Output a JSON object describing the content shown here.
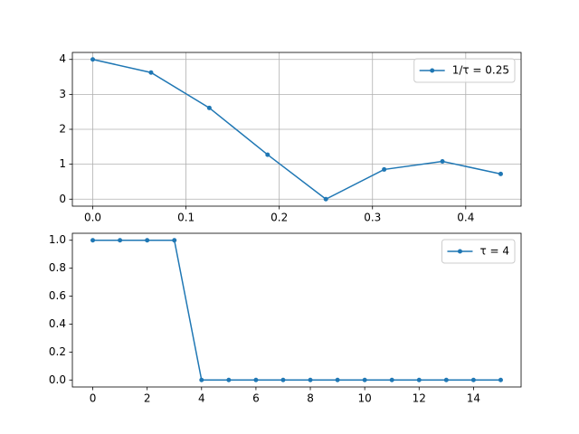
{
  "chart_data": [
    {
      "type": "line",
      "x": [
        0,
        0.0625,
        0.125,
        0.1875,
        0.25,
        0.3125,
        0.375,
        0.4375
      ],
      "series": [
        {
          "name": "1/τ = 0.25",
          "color": "#1f77b4",
          "values": [
            4,
            3.625,
            2.613,
            1.273,
            0,
            0.85,
            1.082,
            0.721
          ]
        }
      ],
      "xlim": [
        -0.021875,
        0.459375
      ],
      "ylim": [
        -0.2,
        4.2
      ],
      "xticks": [
        {
          "value": 0,
          "label": "0.0"
        },
        0.1,
        0.2,
        0.3,
        0.4
      ],
      "yticks": [
        0,
        1,
        2,
        3,
        4
      ],
      "grid": true,
      "legend": "upper right"
    },
    {
      "type": "line",
      "x": [
        0,
        1,
        2,
        3,
        4,
        5,
        6,
        7,
        8,
        9,
        10,
        11,
        12,
        13,
        14,
        15
      ],
      "series": [
        {
          "name": "τ = 4",
          "color": "#1f77b4",
          "values": [
            1,
            1,
            1,
            1,
            0,
            0,
            0,
            0,
            0,
            0,
            0,
            0,
            0,
            0,
            0,
            0
          ]
        }
      ],
      "xlim": [
        -0.75,
        15.75
      ],
      "ylim": [
        -0.05,
        1.05
      ],
      "xticks": [
        0,
        2,
        4,
        6,
        8,
        10,
        12,
        14
      ],
      "yticks": [
        {
          "value": 0,
          "label": "0.0"
        },
        0.2,
        0.4,
        0.6,
        0.8,
        {
          "value": 1,
          "label": "1.0"
        }
      ],
      "grid": false,
      "legend": "upper right"
    }
  ]
}
